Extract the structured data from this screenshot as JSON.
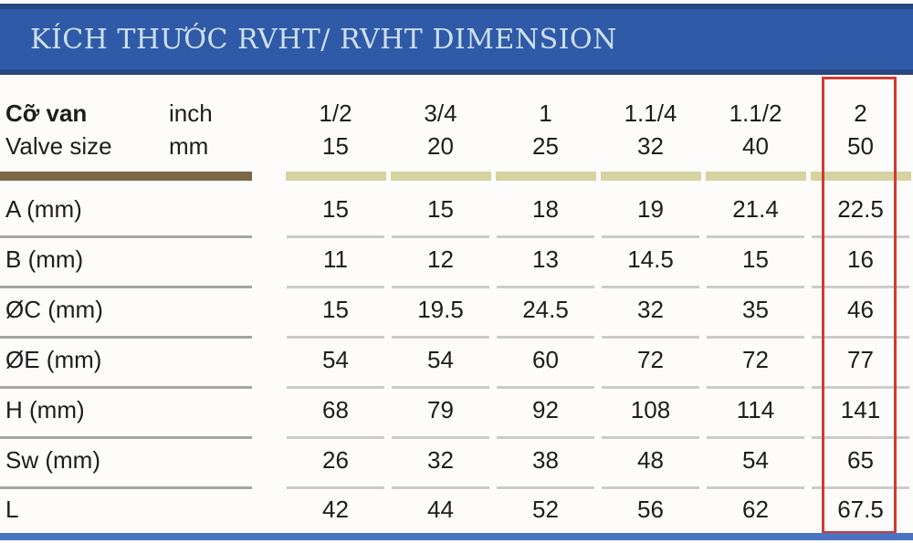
{
  "title": "KÍCH THƯỚC RVHT/ RVHT DIMENSION",
  "colors": {
    "header_bg": "#2e5aa7",
    "header_border": "#26477f",
    "header_text": "#cfe0f2",
    "brown_bar": "#7a6848",
    "olive_bar": "#d6d2a2",
    "red_highlight": "#d13a31",
    "bottom_bar": "#4a73c2",
    "rule_dark": "#a5a5a5",
    "rule_light": "#cbcbcb"
  },
  "table": {
    "size_label_vi": "Cỡ van",
    "size_label_en": "Valve size",
    "unit_inch": "inch",
    "unit_mm": "mm",
    "columns_inch": [
      "1/2",
      "3/4",
      "1",
      "1.1/4",
      "1.1/2",
      "2"
    ],
    "columns_mm": [
      "15",
      "20",
      "25",
      "32",
      "40",
      "50"
    ],
    "rows": [
      {
        "label": "A (mm)",
        "values": [
          "15",
          "15",
          "18",
          "19",
          "21.4",
          "22.5"
        ]
      },
      {
        "label": "B (mm)",
        "values": [
          "11",
          "12",
          "13",
          "14.5",
          "15",
          "16"
        ]
      },
      {
        "label": "ØC (mm)",
        "values": [
          "15",
          "19.5",
          "24.5",
          "32",
          "35",
          "46"
        ]
      },
      {
        "label": "ØE (mm)",
        "values": [
          "54",
          "54",
          "60",
          "72",
          "72",
          "77"
        ]
      },
      {
        "label": "H (mm)",
        "values": [
          "68",
          "79",
          "92",
          "108",
          "114",
          "141"
        ]
      },
      {
        "label": "Sw (mm)",
        "values": [
          "26",
          "32",
          "38",
          "48",
          "54",
          "65"
        ]
      },
      {
        "label": "L",
        "values": [
          "42",
          "44",
          "52",
          "56",
          "62",
          "67.5"
        ]
      }
    ],
    "highlighted_column": "2 / 50"
  }
}
